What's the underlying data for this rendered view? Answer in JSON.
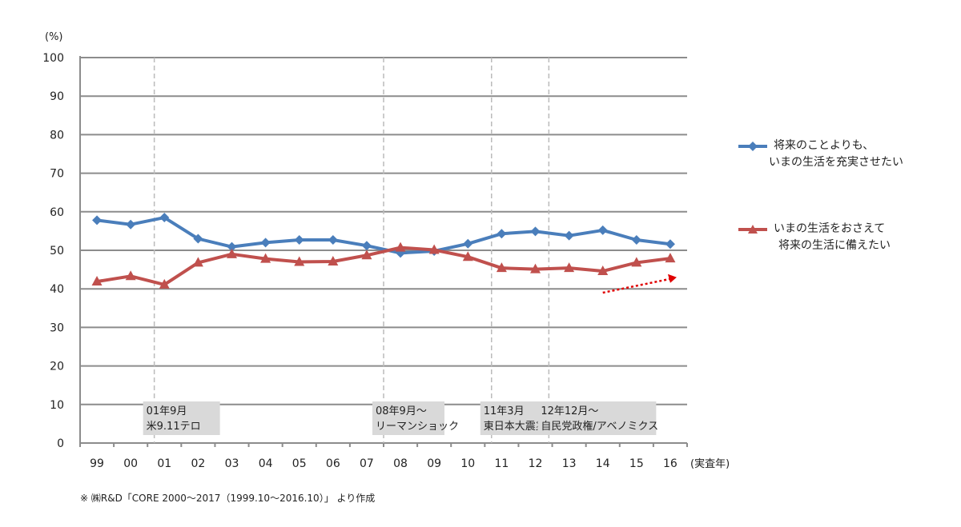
{
  "chart_data": {
    "type": "line",
    "y_unit": "(%)",
    "ylim": [
      0,
      100
    ],
    "yticks": [
      0,
      10,
      20,
      30,
      40,
      50,
      60,
      70,
      80,
      90,
      100
    ],
    "categories": [
      "99",
      "00",
      "01",
      "02",
      "03",
      "04",
      "05",
      "06",
      "07",
      "08",
      "09",
      "10",
      "11",
      "12",
      "13",
      "14",
      "15",
      "16"
    ],
    "x_unit": "(実査年)",
    "grid": true,
    "legend_position": "right",
    "series": [
      {
        "name_line1": "将来のことよりも、",
        "name_line2": "いまの生活を充実させたい",
        "color": "#4a7ebb",
        "marker": "diamond",
        "values": [
          57.8,
          56.7,
          58.5,
          53.0,
          50.9,
          52.0,
          52.7,
          52.7,
          51.2,
          49.3,
          49.8,
          51.7,
          54.3,
          54.9,
          53.8,
          55.2,
          52.7,
          51.6
        ]
      },
      {
        "name_line1": "いまの生活をおさえて",
        "name_line2": "将来の生活に備えたい",
        "color": "#c0504d",
        "marker": "triangle",
        "values": [
          41.9,
          43.3,
          41.1,
          46.8,
          49.0,
          47.8,
          47.0,
          47.1,
          48.7,
          50.7,
          50.1,
          48.3,
          45.4,
          45.1,
          45.4,
          44.6,
          46.8,
          47.9
        ]
      }
    ],
    "events": [
      {
        "category": "01",
        "line1": "01年9月",
        "line2": "米9.11テロ"
      },
      {
        "category": "08",
        "line1": "08年9月～",
        "line2": "リーマンショック"
      },
      {
        "category": "11",
        "line1": "11年3月",
        "line2": "東日本大震災"
      },
      {
        "category": "12",
        "line1": "12年12月～",
        "line2": "自民党政権/アベノミクス"
      }
    ],
    "trend_arrow": {
      "color": "#e00000",
      "style": "dotted",
      "from": {
        "x": "14",
        "y": 39
      },
      "to": {
        "x": "16",
        "y": 43
      }
    }
  },
  "source_note": "※ ㈱R&D「CORE 2000～2017（1999.10～2016.10）」 より作成"
}
